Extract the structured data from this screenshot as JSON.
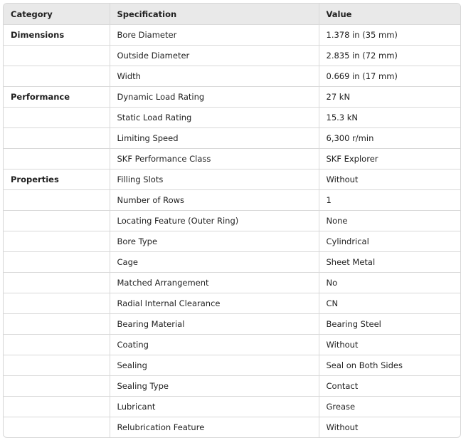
{
  "table": {
    "headers": [
      "Category",
      "Specification",
      "Value"
    ],
    "rows": [
      [
        "Dimensions",
        "Bore Diameter",
        "1.378 in (35 mm)"
      ],
      [
        "",
        "Outside Diameter",
        "2.835 in (72 mm)"
      ],
      [
        "",
        "Width",
        "0.669 in (17 mm)"
      ],
      [
        "Performance",
        "Dynamic Load Rating",
        "27 kN"
      ],
      [
        "",
        "Static Load Rating",
        "15.3 kN"
      ],
      [
        "",
        "Limiting Speed",
        "6,300 r/min"
      ],
      [
        "",
        "SKF Performance Class",
        "SKF Explorer"
      ],
      [
        "Properties",
        "Filling Slots",
        "Without"
      ],
      [
        "",
        "Number of Rows",
        "1"
      ],
      [
        "",
        "Locating Feature (Outer Ring)",
        "None"
      ],
      [
        "",
        "Bore Type",
        "Cylindrical"
      ],
      [
        "",
        "Cage",
        "Sheet Metal"
      ],
      [
        "",
        "Matched Arrangement",
        "No"
      ],
      [
        "",
        "Radial Internal Clearance",
        "CN"
      ],
      [
        "",
        "Bearing Material",
        "Bearing Steel"
      ],
      [
        "",
        "Coating",
        "Without"
      ],
      [
        "",
        "Sealing",
        "Seal on Both Sides"
      ],
      [
        "",
        "Sealing Type",
        "Contact"
      ],
      [
        "",
        "Lubricant",
        "Grease"
      ],
      [
        "",
        "Relubrication Feature",
        "Without"
      ]
    ]
  }
}
